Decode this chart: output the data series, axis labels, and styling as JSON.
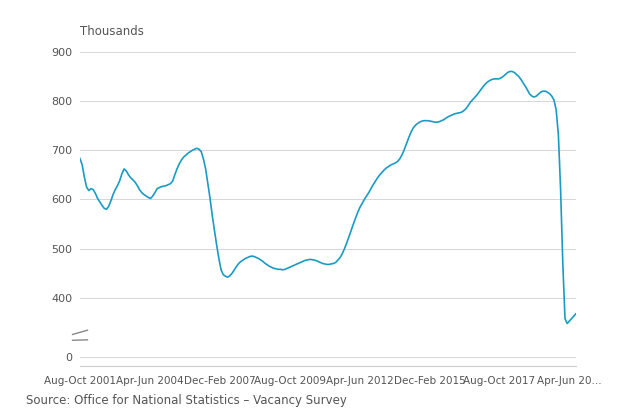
{
  "title": "",
  "ylabel": "Thousands",
  "source": "Source: Office for National Statistics – Vacancy Survey",
  "line_color": "#1a9bc4",
  "background_color": "#ffffff",
  "grid_color": "#d0d0d0",
  "ylim": [
    0,
    900
  ],
  "yticks": [
    0,
    400,
    500,
    600,
    700,
    800,
    900
  ],
  "ytick_labels": [
    "0",
    "400",
    "500",
    "600",
    "700",
    "800",
    "900"
  ],
  "xtick_labels": [
    "Aug-Oct 2001",
    "Apr-Jun 2004",
    "Dec-Feb 2007",
    "Aug-Oct 2009",
    "Apr-Jun 2012",
    "Dec-Feb 2015",
    "Aug-Oct 2017",
    "Apr-Jun 20..."
  ],
  "values": [
    683,
    670,
    645,
    625,
    618,
    622,
    620,
    612,
    602,
    595,
    588,
    582,
    580,
    586,
    597,
    610,
    620,
    628,
    638,
    652,
    662,
    658,
    650,
    644,
    640,
    635,
    628,
    620,
    614,
    610,
    607,
    604,
    602,
    607,
    614,
    622,
    624,
    626,
    627,
    628,
    630,
    632,
    637,
    650,
    662,
    672,
    680,
    686,
    690,
    694,
    697,
    700,
    702,
    704,
    702,
    697,
    682,
    662,
    632,
    602,
    567,
    537,
    507,
    480,
    457,
    447,
    444,
    442,
    445,
    450,
    457,
    464,
    470,
    474,
    477,
    480,
    482,
    484,
    485,
    484,
    482,
    480,
    477,
    474,
    470,
    467,
    464,
    462,
    460,
    459,
    458,
    458,
    457,
    458,
    460,
    462,
    464,
    466,
    468,
    470,
    472,
    474,
    476,
    477,
    478,
    478,
    477,
    476,
    474,
    472,
    470,
    469,
    468,
    468,
    469,
    470,
    472,
    477,
    482,
    490,
    500,
    512,
    524,
    537,
    550,
    562,
    574,
    584,
    592,
    600,
    607,
    614,
    622,
    630,
    637,
    644,
    650,
    655,
    660,
    664,
    667,
    670,
    672,
    674,
    677,
    682,
    690,
    700,
    712,
    724,
    735,
    744,
    750,
    754,
    757,
    759,
    760,
    760,
    760,
    759,
    758,
    757,
    757,
    758,
    760,
    762,
    765,
    768,
    770,
    772,
    774,
    775,
    776,
    777,
    780,
    784,
    790,
    797,
    802,
    807,
    812,
    818,
    824,
    830,
    835,
    839,
    842,
    844,
    845,
    845,
    845,
    847,
    850,
    854,
    858,
    860,
    860,
    858,
    854,
    850,
    844,
    837,
    830,
    822,
    814,
    810,
    808,
    810,
    814,
    818,
    820,
    820,
    818,
    815,
    810,
    802,
    782,
    732,
    622,
    472,
    358,
    348,
    353,
    358,
    363,
    368
  ]
}
